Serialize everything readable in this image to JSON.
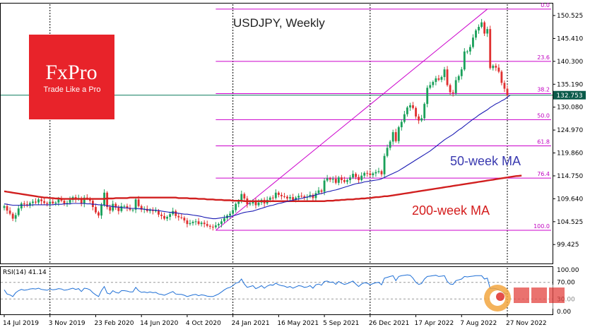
{
  "chart_data": {
    "type": "candlestick",
    "title": "USDJPY, Weekly",
    "colors": {
      "up": "#1aa05a",
      "down": "#e03030",
      "ma50": "#1c1cb4",
      "ma200": "#d11f1f",
      "fib": "#cc00cc",
      "current": "#0a7a5a",
      "rsi": "#1e6fd6",
      "brand": "#e8232a"
    },
    "brand": {
      "name": "FxPro",
      "tagline": "Trade Like a Pro"
    },
    "y_ticks": [
      "150.525",
      "145.410",
      "140.300",
      "135.190",
      "130.080",
      "124.970",
      "119.860",
      "114.750",
      "109.640",
      "104.525",
      "99.425"
    ],
    "y_tick_values": [
      150.525,
      145.41,
      140.3,
      135.19,
      130.08,
      124.97,
      119.86,
      114.75,
      109.64,
      104.525,
      99.425
    ],
    "ylim": [
      95.2,
      153.2
    ],
    "current_price": {
      "label": "132.753",
      "value": 132.753
    },
    "x_ticks": [
      "14 Jul 2019",
      "3 Nov 2019",
      "23 Feb 2020",
      "14 Jun 2020",
      "4 Oct 2020",
      "24 Jan 2021",
      "16 May 2021",
      "5 Sep 2021",
      "26 Dec 2021",
      "17 Apr 2022",
      "7 Aug 2022",
      "27 Nov 2022"
    ],
    "x_tick_index": [
      0,
      16,
      32,
      48,
      64,
      80,
      96,
      112,
      128,
      144,
      160,
      176
    ],
    "vertical_dividers": [
      16,
      80,
      128,
      176
    ],
    "fibonacci": {
      "high": 151.95,
      "low": 102.6,
      "levels": [
        {
          "label": "0.0",
          "value": 151.95
        },
        {
          "label": "23.6",
          "value": 140.3
        },
        {
          "label": "38.2",
          "value": 133.1
        },
        {
          "label": "50.0",
          "value": 127.3
        },
        {
          "label": "61.8",
          "value": 121.45
        },
        {
          "label": "76.4",
          "value": 114.25
        },
        {
          "label": "100.0",
          "value": 102.6
        }
      ]
    },
    "annotations": [
      {
        "text": "50-week MA",
        "color": "blue"
      },
      {
        "text": "200-week MA",
        "color": "red"
      }
    ],
    "weekly_close": [
      108.0,
      107.0,
      106.3,
      105.2,
      106.0,
      107.5,
      108.6,
      108.4,
      108.1,
      108.7,
      109.0,
      108.8,
      109.5,
      109.1,
      108.7,
      108.5,
      109.0,
      108.6,
      108.8,
      109.5,
      109.2,
      108.6,
      108.7,
      109.4,
      110.0,
      109.5,
      109.8,
      108.5,
      109.9,
      109.7,
      109.2,
      107.8,
      106.6,
      105.9,
      108.2,
      111.0,
      107.8,
      107.0,
      108.5,
      107.7,
      106.9,
      108.0,
      108.0,
      107.6,
      107.2,
      107.2,
      109.5,
      108.0,
      107.2,
      107.4,
      106.9,
      107.2,
      106.9,
      107.0,
      106.1,
      105.8,
      105.2,
      105.6,
      106.2,
      106.9,
      105.8,
      105.5,
      105.4,
      104.8,
      104.0,
      104.2,
      104.5,
      104.6,
      104.0,
      104.3,
      104.0,
      103.6,
      103.4,
      103.3,
      103.7,
      104.0,
      104.6,
      105.3,
      105.9,
      106.3,
      107.1,
      108.5,
      109.0,
      110.7,
      109.7,
      108.4,
      108.6,
      109.2,
      108.2,
      108.8,
      109.4,
      108.6,
      109.4,
      109.9,
      109.8,
      111.0,
      110.5,
      110.2,
      110.1,
      109.7,
      110.0,
      109.4,
      109.9,
      110.3,
      110.2,
      109.9,
      110.1,
      110.5,
      109.8,
      110.9,
      111.5,
      111.2,
      113.7,
      114.2,
      113.9,
      114.1,
      113.2,
      114.4,
      113.8,
      113.4,
      113.8,
      114.4,
      115.2,
      114.5,
      113.8,
      114.8,
      115.4,
      115.3,
      114.9,
      115.3,
      115.6,
      115.8,
      115.1,
      119.2,
      121.0,
      122.4,
      124.5,
      122.5,
      125.6,
      126.8,
      128.5,
      130.0,
      130.5,
      129.9,
      128.0,
      127.1,
      127.6,
      130.8,
      134.4,
      135.0,
      135.7,
      136.5,
      136.2,
      136.8,
      138.5,
      135.0,
      133.4,
      133.2,
      136.1,
      137.0,
      138.5,
      142.5,
      142.5,
      143.5,
      145.6,
      147.2,
      148.0,
      149.0,
      146.5,
      147.5,
      138.8,
      139.3,
      138.9,
      138.0,
      135.5,
      134.2,
      132.75
    ],
    "ma50": [
      108.5,
      108.4,
      108.3,
      108.2,
      108.2,
      108.2,
      108.2,
      108.2,
      108.2,
      108.2,
      108.3,
      108.3,
      108.3,
      108.3,
      108.3,
      108.3,
      108.3,
      108.3,
      108.4,
      108.4,
      108.4,
      108.5,
      108.5,
      108.5,
      108.6,
      108.6,
      108.6,
      108.6,
      108.6,
      108.5,
      108.5,
      108.4,
      108.4,
      108.3,
      108.3,
      108.2,
      108.1,
      108.0,
      107.9,
      107.8,
      107.8,
      107.7,
      107.6,
      107.6,
      107.5,
      107.5,
      107.5,
      107.4,
      107.4,
      107.3,
      107.2,
      107.2,
      107.1,
      107.1,
      107.0,
      106.9,
      106.8,
      106.7,
      106.6,
      106.6,
      106.5,
      106.4,
      106.3,
      106.2,
      106.2,
      106.1,
      106.0,
      105.9,
      105.8,
      105.7,
      105.5,
      105.4,
      105.3,
      105.2,
      105.2,
      105.3,
      105.4,
      105.5,
      105.6,
      105.7,
      105.8,
      106.0,
      106.2,
      106.4,
      106.6,
      106.7,
      106.8,
      106.9,
      107.1,
      107.3,
      107.5,
      107.7,
      107.9,
      108.1,
      108.2,
      108.4,
      108.6,
      108.7,
      108.9,
      109.0,
      109.2,
      109.3,
      109.5,
      109.6,
      109.7,
      109.9,
      110.0,
      110.2,
      110.3,
      110.5,
      110.7,
      110.8,
      111.0,
      111.2,
      111.3,
      111.5,
      111.6,
      111.8,
      112.0,
      112.2,
      112.4,
      112.6,
      112.8,
      113.0,
      113.1,
      113.2,
      113.4,
      113.5,
      113.6,
      113.7,
      113.8,
      113.9,
      114.1,
      114.4,
      114.7,
      115.0,
      115.3,
      115.6,
      115.9,
      116.3,
      116.7,
      117.1,
      117.5,
      117.9,
      118.3,
      118.7,
      119.1,
      119.5,
      119.9,
      120.3,
      120.8,
      121.3,
      121.8,
      122.3,
      122.8,
      123.2,
      123.6,
      124.0,
      124.5,
      125.0,
      125.4,
      125.9,
      126.4,
      126.9,
      127.4,
      127.8,
      128.3,
      128.7,
      129.1,
      129.5,
      130.0,
      130.4,
      130.8,
      131.1,
      131.5,
      131.8,
      132.3,
      132.75
    ],
    "ma200": [
      111.3,
      111.2,
      111.1,
      111.0,
      110.9,
      110.8,
      110.7,
      110.6,
      110.5,
      110.4,
      110.3,
      110.2,
      110.1,
      110.0,
      109.9,
      109.9,
      109.8,
      109.8,
      109.7,
      109.7,
      109.6,
      109.6,
      109.6,
      109.6,
      109.6,
      109.6,
      109.6,
      109.6,
      109.6,
      109.6,
      109.6,
      109.6,
      109.6,
      109.6,
      109.6,
      109.6,
      109.7,
      109.7,
      109.7,
      109.8,
      109.8,
      109.8,
      109.8,
      109.8,
      109.9,
      109.9,
      109.9,
      109.9,
      109.9,
      109.9,
      109.9,
      109.9,
      109.9,
      109.9,
      109.9,
      109.9,
      109.9,
      109.9,
      109.9,
      109.9,
      109.9,
      109.8,
      109.8,
      109.8,
      109.8,
      109.7,
      109.7,
      109.7,
      109.6,
      109.6,
      109.6,
      109.5,
      109.5,
      109.5,
      109.4,
      109.4,
      109.4,
      109.3,
      109.3,
      109.3,
      109.2,
      109.2,
      109.2,
      109.2,
      109.1,
      109.1,
      109.1,
      109.1,
      109.1,
      109.1,
      109.1,
      109.1,
      109.1,
      109.1,
      109.1,
      109.1,
      109.1,
      109.1,
      109.1,
      109.1,
      109.1,
      109.1,
      109.1,
      109.1,
      109.1,
      109.1,
      109.1,
      109.1,
      109.1,
      109.1,
      109.1,
      109.1,
      109.1,
      109.2,
      109.2,
      109.2,
      109.3,
      109.3,
      109.4,
      109.4,
      109.5,
      109.5,
      109.5,
      109.6,
      109.6,
      109.7,
      109.7,
      109.8,
      109.8,
      109.9,
      110.0,
      110.0,
      110.1,
      110.2,
      110.2,
      110.3,
      110.4,
      110.5,
      110.6,
      110.7,
      110.8,
      110.9,
      111.0,
      111.1,
      111.2,
      111.3,
      111.4,
      111.5,
      111.6,
      111.7,
      111.8,
      111.9,
      112.0,
      112.1,
      112.2,
      112.3,
      112.4,
      112.5,
      112.6,
      112.7,
      112.8,
      112.9,
      113.0,
      113.1,
      113.2,
      113.3,
      113.4,
      113.5,
      113.6,
      113.7,
      113.8,
      113.9,
      114.0,
      114.1,
      114.2,
      114.3,
      114.4,
      114.5,
      114.6,
      114.7,
      114.75,
      114.8
    ],
    "rsi": {
      "label": "RSI(14) 41.14",
      "levels": [
        {
          "label": "100.00",
          "value": 100
        },
        {
          "label": "70.00",
          "value": 70
        },
        {
          "label": "30.00",
          "value": 30
        },
        {
          "label": "0.00",
          "value": 0
        }
      ],
      "values": [
        52,
        42,
        40,
        36,
        45,
        50,
        53,
        51,
        52,
        54,
        55,
        54,
        56,
        53,
        52,
        51,
        54,
        52,
        53,
        55,
        54,
        51,
        52,
        54,
        56,
        53,
        55,
        48,
        56,
        55,
        52,
        45,
        40,
        36,
        50,
        60,
        44,
        42,
        50,
        46,
        44,
        50,
        50,
        49,
        47,
        47,
        58,
        50,
        46,
        47,
        45,
        47,
        45,
        46,
        42,
        41,
        39,
        42,
        45,
        48,
        42,
        41,
        41,
        39,
        36,
        38,
        40,
        41,
        38,
        40,
        39,
        37,
        36,
        36,
        39,
        42,
        47,
        52,
        56,
        58,
        62,
        68,
        70,
        78,
        66,
        58,
        60,
        62,
        55,
        58,
        62,
        56,
        61,
        64,
        63,
        68,
        64,
        62,
        61,
        58,
        60,
        56,
        59,
        62,
        61,
        58,
        59,
        62,
        56,
        64,
        66,
        63,
        72,
        73,
        70,
        71,
        65,
        72,
        68,
        65,
        67,
        70,
        73,
        66,
        60,
        66,
        69,
        68,
        64,
        67,
        69,
        70,
        64,
        80,
        82,
        84,
        86,
        74,
        84,
        86,
        87,
        88,
        87,
        80,
        70,
        65,
        67,
        78,
        84,
        85,
        86,
        87,
        84,
        85,
        86,
        72,
        66,
        65,
        74,
        76,
        78,
        84,
        83,
        84,
        85,
        86,
        86,
        86,
        78,
        80,
        55,
        56,
        55,
        52,
        47,
        44,
        41.14
      ]
    }
  }
}
